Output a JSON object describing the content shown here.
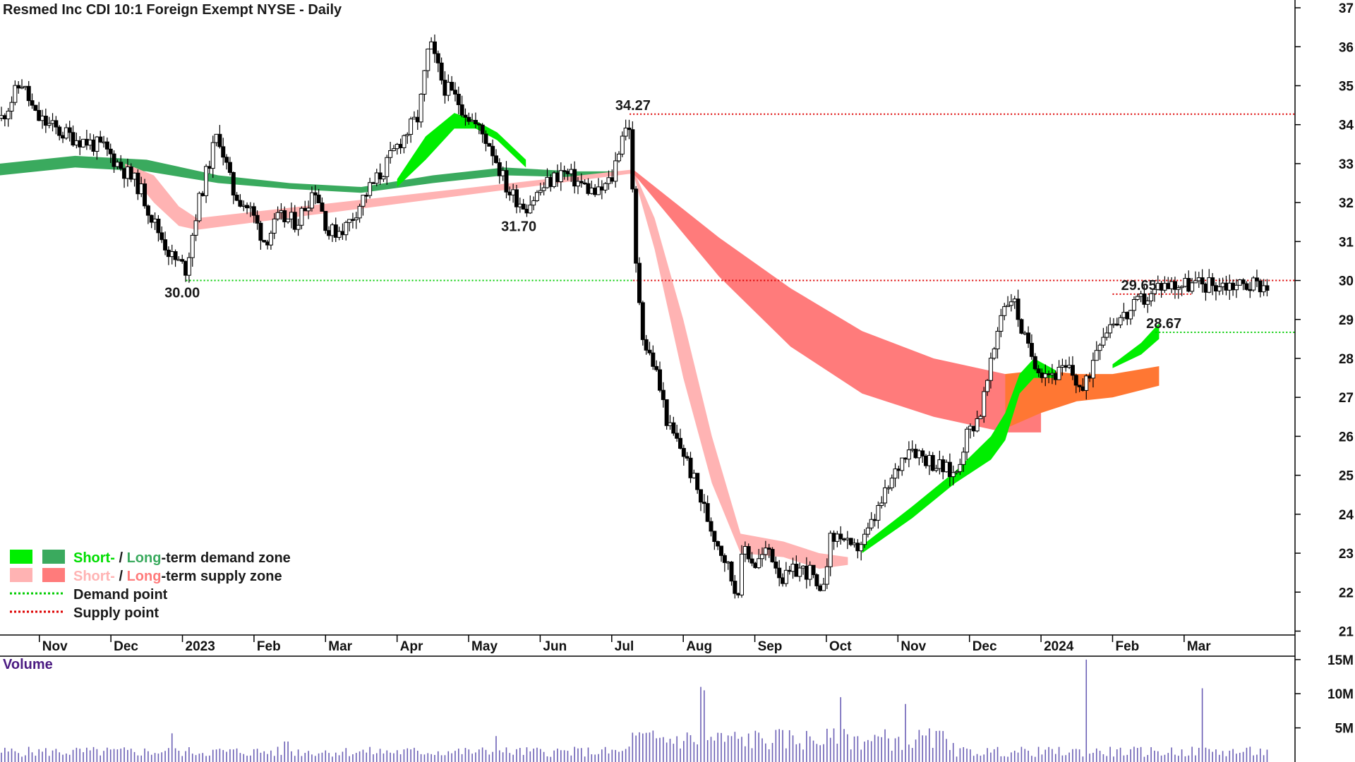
{
  "chart_data": {
    "type": "candlestick",
    "title": "Resmed Inc CDI 10:1 Foreign Exempt NYSE - Daily",
    "price_axis": {
      "ticks": [
        21,
        22,
        23,
        24,
        25,
        26,
        27,
        28,
        29,
        30,
        31,
        32,
        33,
        34,
        35,
        36,
        37
      ],
      "ylim": [
        20.9,
        37.2
      ]
    },
    "x_ticks": [
      "Nov",
      "Dec",
      "2023",
      "Feb",
      "Mar",
      "Apr",
      "May",
      "Jun",
      "Jul",
      "Aug",
      "Sep",
      "Oct",
      "Nov",
      "Dec",
      "2024",
      "Feb",
      "Mar"
    ],
    "x_tick_months": [
      0,
      1,
      2,
      3,
      4,
      5,
      6,
      7,
      8,
      9,
      10,
      11,
      12,
      13,
      14,
      15,
      16
    ],
    "x_range_months": [
      -0.55,
      17.55
    ],
    "last_month": 17.16,
    "price_anchors": [
      [
        -0.55,
        34.1
      ],
      [
        -0.25,
        35.1
      ],
      [
        -0.05,
        34.2
      ],
      [
        0.3,
        33.8
      ],
      [
        0.6,
        33.6
      ],
      [
        0.9,
        33.4
      ],
      [
        1.1,
        33.0
      ],
      [
        1.4,
        32.4
      ],
      [
        1.6,
        31.5
      ],
      [
        1.85,
        30.6
      ],
      [
        2.05,
        30.3
      ],
      [
        2.2,
        31.8
      ],
      [
        2.4,
        33.2
      ],
      [
        2.5,
        33.8
      ],
      [
        2.7,
        32.3
      ],
      [
        2.95,
        31.8
      ],
      [
        3.15,
        31.0
      ],
      [
        3.35,
        31.6
      ],
      [
        3.6,
        31.5
      ],
      [
        3.85,
        32.4
      ],
      [
        4.05,
        31.2
      ],
      [
        4.3,
        31.4
      ],
      [
        4.55,
        32.2
      ],
      [
        4.8,
        32.8
      ],
      [
        5.05,
        33.6
      ],
      [
        5.3,
        34.2
      ],
      [
        5.45,
        36.1
      ],
      [
        5.65,
        35.0
      ],
      [
        5.85,
        34.6
      ],
      [
        6.05,
        34.1
      ],
      [
        6.3,
        33.5
      ],
      [
        6.55,
        32.3
      ],
      [
        6.8,
        31.9
      ],
      [
        7.05,
        32.4
      ],
      [
        7.3,
        32.8
      ],
      [
        7.55,
        32.5
      ],
      [
        7.8,
        32.2
      ],
      [
        8.0,
        32.6
      ],
      [
        8.15,
        33.8
      ],
      [
        8.25,
        34.0
      ],
      [
        8.33,
        30.5
      ],
      [
        8.45,
        28.4
      ],
      [
        8.6,
        27.8
      ],
      [
        8.8,
        26.2
      ],
      [
        9.0,
        25.6
      ],
      [
        9.2,
        24.6
      ],
      [
        9.4,
        23.6
      ],
      [
        9.6,
        22.8
      ],
      [
        9.75,
        21.9
      ],
      [
        9.85,
        23.2
      ],
      [
        10.0,
        22.7
      ],
      [
        10.2,
        23.1
      ],
      [
        10.4,
        22.3
      ],
      [
        10.6,
        22.6
      ],
      [
        10.8,
        22.5
      ],
      [
        10.9,
        21.7
      ],
      [
        11.05,
        23.3
      ],
      [
        11.2,
        23.5
      ],
      [
        11.35,
        23.0
      ],
      [
        11.55,
        23.4
      ],
      [
        11.75,
        24.2
      ],
      [
        11.95,
        25.0
      ],
      [
        12.15,
        25.8
      ],
      [
        12.35,
        25.5
      ],
      [
        12.6,
        25.2
      ],
      [
        12.8,
        25.0
      ],
      [
        12.95,
        26.0
      ],
      [
        13.15,
        26.6
      ],
      [
        13.3,
        27.8
      ],
      [
        13.45,
        29.3
      ],
      [
        13.6,
        29.6
      ],
      [
        13.8,
        28.3
      ],
      [
        14.0,
        27.7
      ],
      [
        14.2,
        27.6
      ],
      [
        14.4,
        27.7
      ],
      [
        14.6,
        27.1
      ],
      [
        14.8,
        28.5
      ],
      [
        15.0,
        29.0
      ],
      [
        15.2,
        29.1
      ],
      [
        15.4,
        29.5
      ],
      [
        15.55,
        29.6
      ],
      [
        15.65,
        29.9
      ]
    ],
    "bands": {
      "long_term_demand": {
        "color": "#3aaa5e",
        "upper": [
          [
            -0.55,
            33.0
          ],
          [
            0.5,
            33.2
          ],
          [
            1.5,
            33.1
          ],
          [
            2.5,
            32.7
          ],
          [
            3.5,
            32.5
          ],
          [
            4.5,
            32.4
          ],
          [
            5.5,
            32.7
          ],
          [
            6.5,
            32.9
          ],
          [
            7.5,
            32.8
          ],
          [
            8.3,
            32.8
          ]
        ],
        "lower": [
          [
            -0.55,
            32.7
          ],
          [
            0.5,
            32.9
          ],
          [
            1.5,
            32.8
          ],
          [
            2.5,
            32.5
          ],
          [
            3.5,
            32.35
          ],
          [
            4.5,
            32.25
          ],
          [
            5.5,
            32.5
          ],
          [
            6.5,
            32.7
          ],
          [
            7.5,
            32.65
          ],
          [
            8.3,
            32.75
          ]
        ]
      },
      "short_term_demand": {
        "color": "#00ee00",
        "upper": [
          [
            5.0,
            32.6
          ],
          [
            5.4,
            33.7
          ],
          [
            5.8,
            34.3
          ],
          [
            6.1,
            34.1
          ],
          [
            6.4,
            33.8
          ],
          [
            6.8,
            33.1
          ]
        ],
        "lower": [
          [
            5.0,
            32.4
          ],
          [
            5.4,
            33.1
          ],
          [
            5.8,
            33.9
          ],
          [
            6.1,
            33.9
          ],
          [
            6.4,
            33.6
          ],
          [
            6.8,
            32.9
          ]
        ]
      },
      "short_term_supply": {
        "color": "#ffb3b3",
        "upper": [
          [
            1.2,
            33.0
          ],
          [
            1.6,
            32.7
          ],
          [
            1.95,
            31.9
          ],
          [
            2.2,
            31.6
          ],
          [
            8.3,
            32.85
          ],
          [
            8.6,
            31.6
          ],
          [
            9.0,
            29.0
          ],
          [
            9.4,
            26.0
          ],
          [
            9.8,
            23.5
          ],
          [
            10.4,
            23.3
          ],
          [
            10.9,
            23.0
          ],
          [
            11.3,
            22.9
          ]
        ],
        "lower": [
          [
            1.2,
            32.9
          ],
          [
            1.6,
            32.0
          ],
          [
            1.95,
            31.4
          ],
          [
            2.2,
            31.3
          ],
          [
            8.3,
            32.75
          ],
          [
            8.6,
            30.8
          ],
          [
            9.0,
            27.5
          ],
          [
            9.4,
            24.8
          ],
          [
            9.8,
            23.0
          ],
          [
            10.4,
            22.9
          ],
          [
            10.9,
            22.6
          ],
          [
            11.3,
            22.7
          ]
        ]
      },
      "long_term_supply": {
        "color": "#ff7b7b",
        "upper": [
          [
            8.3,
            32.85
          ],
          [
            9.5,
            31.1
          ],
          [
            10.5,
            29.8
          ],
          [
            11.5,
            28.7
          ],
          [
            12.5,
            28.0
          ],
          [
            13.5,
            27.6
          ],
          [
            14.0,
            27.6
          ]
        ],
        "lower": [
          [
            8.3,
            32.75
          ],
          [
            9.5,
            30.1
          ],
          [
            10.5,
            28.3
          ],
          [
            11.5,
            27.1
          ],
          [
            12.5,
            26.5
          ],
          [
            13.5,
            26.1
          ],
          [
            14.0,
            26.1
          ]
        ]
      },
      "orange_overlay": {
        "color": "#ff7733",
        "upper": [
          [
            13.5,
            27.6
          ],
          [
            14.0,
            27.7
          ],
          [
            14.5,
            27.6
          ],
          [
            15.0,
            27.6
          ],
          [
            15.65,
            27.8
          ]
        ],
        "lower": [
          [
            13.5,
            26.2
          ],
          [
            14.0,
            26.6
          ],
          [
            14.5,
            26.9
          ],
          [
            15.0,
            27.0
          ],
          [
            15.65,
            27.3
          ]
        ]
      },
      "short_term_demand_2": {
        "color": "#00ee00",
        "upper": [
          [
            11.5,
            23.2
          ],
          [
            12.2,
            24.2
          ],
          [
            12.8,
            25.1
          ],
          [
            13.3,
            26.0
          ],
          [
            13.5,
            26.6
          ],
          [
            13.7,
            27.6
          ],
          [
            13.9,
            28.0
          ],
          [
            14.2,
            27.7
          ]
        ],
        "lower": [
          [
            11.5,
            23.0
          ],
          [
            12.2,
            23.9
          ],
          [
            12.8,
            24.8
          ],
          [
            13.3,
            25.4
          ],
          [
            13.5,
            25.9
          ],
          [
            13.7,
            27.1
          ],
          [
            13.9,
            27.5
          ],
          [
            14.2,
            27.5
          ]
        ]
      },
      "short_term_demand_3": {
        "color": "#00ee00",
        "upper": [
          [
            15.0,
            27.85
          ],
          [
            15.4,
            28.4
          ],
          [
            15.65,
            28.9
          ]
        ],
        "lower": [
          [
            15.0,
            27.75
          ],
          [
            15.4,
            28.1
          ],
          [
            15.65,
            28.5
          ]
        ]
      }
    },
    "levels": [
      {
        "label": "34.27",
        "value": 34.27,
        "type": "supply",
        "from": 8.25,
        "to": 17.55,
        "label_at": 8.05
      },
      {
        "label": "30.00",
        "value": 30.0,
        "type": "demand",
        "from": 2.05,
        "to": 8.3,
        "label_at": 1.75
      },
      {
        "label": "",
        "value": 30.0,
        "type": "supply",
        "from": 8.3,
        "to": 17.55,
        "label_at": null
      },
      {
        "label": "29.65",
        "value": 29.65,
        "type": "supply",
        "from": 15.0,
        "to": 16.1,
        "label_at": 15.12
      },
      {
        "label": "28.67",
        "value": 28.67,
        "type": "demand",
        "from": 15.6,
        "to": 17.55,
        "label_at": 15.47
      }
    ],
    "point_labels": [
      {
        "label": "31.70",
        "month": 6.75,
        "value": 31.7
      }
    ],
    "volume_axis": {
      "ticks": [
        "15M",
        "10M",
        "5M"
      ],
      "tick_values": [
        15,
        10,
        5
      ],
      "ylim": [
        0,
        15.5
      ]
    },
    "volume_title": "Volume",
    "volume_spikes": [
      [
        1.85,
        4.2
      ],
      [
        3.45,
        3.0
      ],
      [
        6.4,
        3.8
      ],
      [
        9.25,
        11.0
      ],
      [
        9.3,
        10.5
      ],
      [
        11.2,
        9.5
      ],
      [
        12.1,
        8.5
      ],
      [
        14.65,
        15.0
      ],
      [
        16.25,
        10.8
      ]
    ],
    "volume_baseline": 1.5,
    "legend": [
      {
        "swatches": [
          "#00ee00",
          "#3aaa5e"
        ],
        "parts": [
          {
            "text": "Short-",
            "color": "#00dd00"
          },
          {
            "text": " / ",
            "color": "#1a1a1a"
          },
          {
            "text": "Long",
            "color": "#3aaa5e"
          },
          {
            "text": "-term demand zone",
            "color": "#1a1a1a"
          }
        ]
      },
      {
        "swatches": [
          "#ffb3b3",
          "#ff7b7b"
        ],
        "parts": [
          {
            "text": "Short-",
            "color": "#ffb3b3"
          },
          {
            "text": " / ",
            "color": "#1a1a1a"
          },
          {
            "text": "Long",
            "color": "#ff7b7b"
          },
          {
            "text": "-term supply zone",
            "color": "#1a1a1a"
          }
        ]
      },
      {
        "line_color": "#00cc00",
        "text": "Demand point"
      },
      {
        "line_color": "#dd0000",
        "text": "Supply point"
      }
    ],
    "colors": {
      "candle_up": "#ffffff",
      "candle_down": "#000000",
      "volume": "#6b5fb5",
      "supply_line": "#dd0000",
      "demand_line": "#00cc00"
    }
  }
}
